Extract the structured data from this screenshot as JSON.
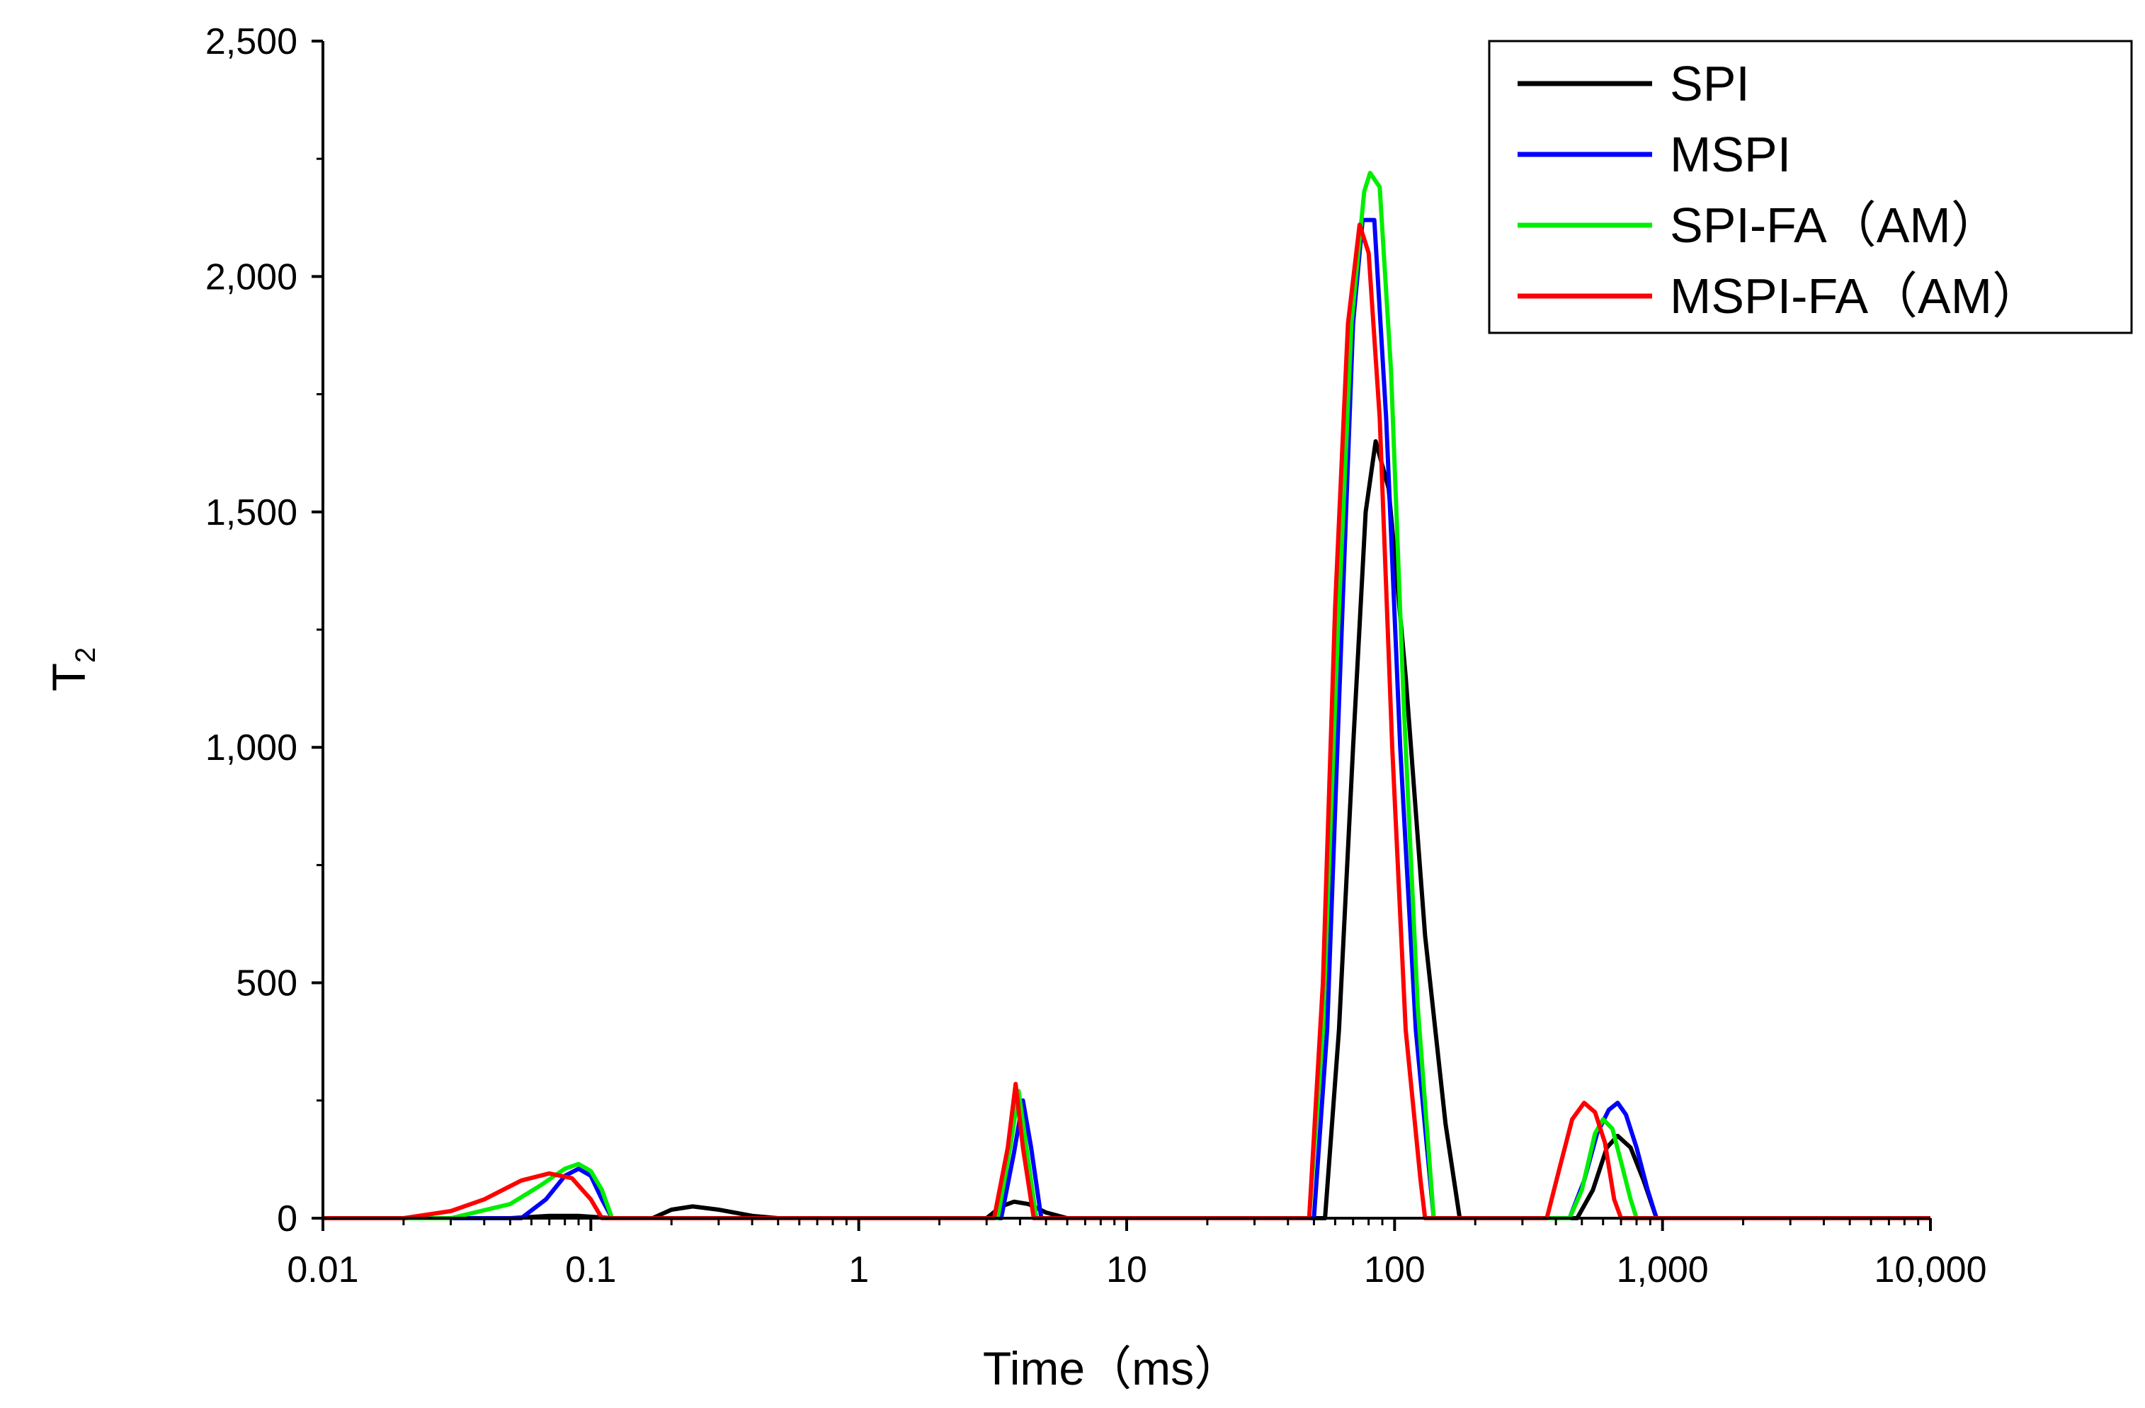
{
  "chart_data": {
    "type": "line",
    "title": "",
    "xlabel": "Time（ms）",
    "ylabel_main": "T",
    "ylabel_sub": "2",
    "x_scale": "log",
    "xlim": [
      0.01,
      10000
    ],
    "ylim": [
      0,
      2500
    ],
    "grid": false,
    "legend_position": "top-right",
    "x_ticks": [
      {
        "value": 0.01,
        "label": "0.01"
      },
      {
        "value": 0.1,
        "label": "0.1"
      },
      {
        "value": 1,
        "label": "1"
      },
      {
        "value": 10,
        "label": "10"
      },
      {
        "value": 100,
        "label": "100"
      },
      {
        "value": 1000,
        "label": "1,000"
      },
      {
        "value": 10000,
        "label": "10,000"
      }
    ],
    "y_ticks": [
      {
        "value": 0,
        "label": "0"
      },
      {
        "value": 500,
        "label": "500"
      },
      {
        "value": 1000,
        "label": "1,000"
      },
      {
        "value": 1500,
        "label": "1,500"
      },
      {
        "value": 2000,
        "label": "2,000"
      },
      {
        "value": 2500,
        "label": "2,500"
      }
    ],
    "series": [
      {
        "name": "SPI",
        "color": "#000000",
        "points": [
          [
            0.01,
            0
          ],
          [
            0.05,
            0
          ],
          [
            0.07,
            5
          ],
          [
            0.09,
            5
          ],
          [
            0.12,
            0
          ],
          [
            0.17,
            0
          ],
          [
            0.2,
            18
          ],
          [
            0.24,
            25
          ],
          [
            0.3,
            18
          ],
          [
            0.4,
            5
          ],
          [
            0.5,
            0
          ],
          [
            3,
            0
          ],
          [
            3.4,
            25
          ],
          [
            3.8,
            35
          ],
          [
            4.3,
            30
          ],
          [
            5,
            12
          ],
          [
            6,
            0
          ],
          [
            55,
            0
          ],
          [
            62,
            400
          ],
          [
            70,
            1000
          ],
          [
            78,
            1500
          ],
          [
            85,
            1650
          ],
          [
            95,
            1550
          ],
          [
            110,
            1150
          ],
          [
            130,
            600
          ],
          [
            155,
            200
          ],
          [
            175,
            0
          ],
          [
            480,
            0
          ],
          [
            550,
            60
          ],
          [
            620,
            150
          ],
          [
            680,
            175
          ],
          [
            760,
            150
          ],
          [
            850,
            80
          ],
          [
            950,
            0
          ],
          [
            10000,
            0
          ]
        ]
      },
      {
        "name": "MSPI",
        "color": "#0000ff",
        "points": [
          [
            0.01,
            0
          ],
          [
            0.055,
            0
          ],
          [
            0.068,
            40
          ],
          [
            0.08,
            90
          ],
          [
            0.09,
            105
          ],
          [
            0.1,
            90
          ],
          [
            0.11,
            40
          ],
          [
            0.12,
            0
          ],
          [
            3.4,
            0
          ],
          [
            3.8,
            140
          ],
          [
            4.1,
            250
          ],
          [
            4.4,
            150
          ],
          [
            4.8,
            0
          ],
          [
            50,
            0
          ],
          [
            56,
            400
          ],
          [
            63,
            1200
          ],
          [
            70,
            1900
          ],
          [
            76,
            2120
          ],
          [
            84,
            2120
          ],
          [
            93,
            1700
          ],
          [
            105,
            1000
          ],
          [
            120,
            400
          ],
          [
            140,
            0
          ],
          [
            450,
            0
          ],
          [
            510,
            80
          ],
          [
            570,
            180
          ],
          [
            630,
            230
          ],
          [
            680,
            245
          ],
          [
            730,
            220
          ],
          [
            800,
            150
          ],
          [
            880,
            60
          ],
          [
            950,
            0
          ],
          [
            10000,
            0
          ]
        ]
      },
      {
        "name": "SPI-FA（AM）",
        "color": "#00ee00",
        "points": [
          [
            0.01,
            0
          ],
          [
            0.03,
            0
          ],
          [
            0.05,
            30
          ],
          [
            0.065,
            70
          ],
          [
            0.08,
            105
          ],
          [
            0.09,
            115
          ],
          [
            0.1,
            100
          ],
          [
            0.11,
            60
          ],
          [
            0.12,
            0
          ],
          [
            3.3,
            0
          ],
          [
            3.7,
            160
          ],
          [
            3.95,
            270
          ],
          [
            4.2,
            160
          ],
          [
            4.6,
            0
          ],
          [
            48,
            0
          ],
          [
            54,
            400
          ],
          [
            61,
            1200
          ],
          [
            69,
            1900
          ],
          [
            77,
            2180
          ],
          [
            81,
            2220
          ],
          [
            88,
            2190
          ],
          [
            97,
            1800
          ],
          [
            108,
            1100
          ],
          [
            122,
            450
          ],
          [
            140,
            0
          ],
          [
            450,
            0
          ],
          [
            500,
            60
          ],
          [
            560,
            180
          ],
          [
            600,
            210
          ],
          [
            650,
            190
          ],
          [
            700,
            120
          ],
          [
            760,
            40
          ],
          [
            800,
            0
          ],
          [
            10000,
            0
          ]
        ]
      },
      {
        "name": "MSPI-FA（AM）",
        "color": "#ff0000",
        "points": [
          [
            0.01,
            0
          ],
          [
            0.02,
            0
          ],
          [
            0.03,
            15
          ],
          [
            0.04,
            40
          ],
          [
            0.055,
            80
          ],
          [
            0.07,
            95
          ],
          [
            0.085,
            85
          ],
          [
            0.1,
            40
          ],
          [
            0.11,
            0
          ],
          [
            3.2,
            0
          ],
          [
            3.6,
            150
          ],
          [
            3.85,
            285
          ],
          [
            4.1,
            150
          ],
          [
            4.5,
            0
          ],
          [
            48,
            0
          ],
          [
            54,
            500
          ],
          [
            60,
            1300
          ],
          [
            67,
            1900
          ],
          [
            74,
            2110
          ],
          [
            80,
            2050
          ],
          [
            88,
            1700
          ],
          [
            98,
            1000
          ],
          [
            110,
            400
          ],
          [
            125,
            80
          ],
          [
            130,
            0
          ],
          [
            370,
            0
          ],
          [
            410,
            100
          ],
          [
            460,
            210
          ],
          [
            510,
            245
          ],
          [
            560,
            225
          ],
          [
            610,
            160
          ],
          [
            660,
            40
          ],
          [
            700,
            0
          ],
          [
            10000,
            0
          ]
        ]
      }
    ]
  }
}
